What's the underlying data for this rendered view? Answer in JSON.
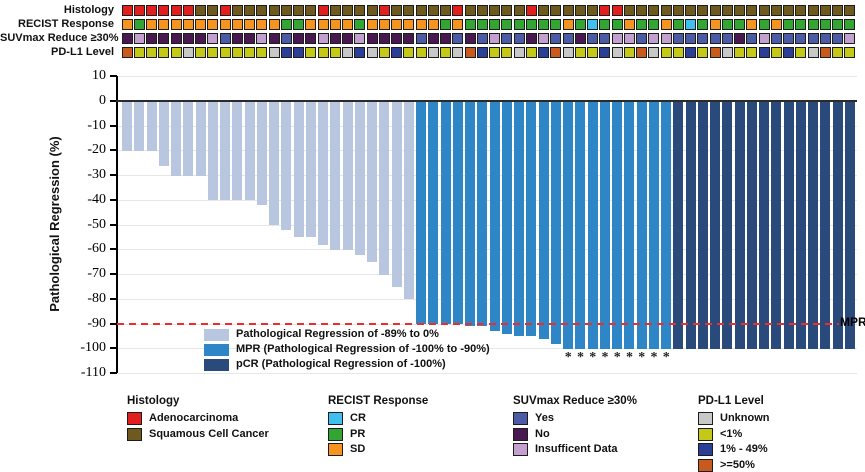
{
  "tracks": {
    "labels": [
      "Histology",
      "RECIST Response",
      "SUVmax Reduce ≥30%",
      "PD-L1 Level"
    ],
    "histology": [
      "A",
      "A",
      "A",
      "A",
      "A",
      "A",
      "S",
      "S",
      "A",
      "S",
      "S",
      "S",
      "S",
      "S",
      "S",
      "S",
      "A",
      "S",
      "S",
      "S",
      "S",
      "A",
      "S",
      "S",
      "S",
      "S",
      "S",
      "A",
      "S",
      "S",
      "S",
      "S",
      "S",
      "A",
      "S",
      "S",
      "S",
      "S",
      "S",
      "A",
      "A",
      "S",
      "S",
      "S",
      "S",
      "S",
      "S",
      "S",
      "S",
      "S",
      "S",
      "S",
      "S",
      "S",
      "S",
      "S",
      "S",
      "S",
      "S",
      "S"
    ],
    "recist": [
      "SD",
      "PR",
      "SD",
      "SD",
      "SD",
      "SD",
      "SD",
      "SD",
      "SD",
      "SD",
      "SD",
      "SD",
      "SD",
      "PR",
      "PR",
      "SD",
      "SD",
      "SD",
      "SD",
      "PR",
      "SD",
      "SD",
      "SD",
      "SD",
      "SD",
      "SD",
      "PR",
      "SD",
      "PR",
      "PR",
      "PR",
      "PR",
      "PR",
      "PR",
      "PR",
      "PR",
      "SD",
      "PR",
      "CR",
      "PR",
      "PR",
      "SD",
      "PR",
      "PR",
      "SD",
      "PR",
      "CR",
      "PR",
      "SD",
      "PR",
      "PR",
      "SD",
      "PR",
      "SD",
      "PR",
      "PR",
      "PR",
      "PR",
      "PR",
      "PR"
    ],
    "suvmax": [
      "N",
      "I",
      "N",
      "N",
      "N",
      "N",
      "N",
      "I",
      "Y",
      "N",
      "N",
      "I",
      "N",
      "Y",
      "N",
      "N",
      "I",
      "N",
      "N",
      "I",
      "N",
      "N",
      "N",
      "N",
      "Y",
      "N",
      "N",
      "Y",
      "N",
      "Y",
      "I",
      "Y",
      "Y",
      "N",
      "I",
      "Y",
      "Y",
      "N",
      "Y",
      "Y",
      "I",
      "I",
      "Y",
      "I",
      "I",
      "Y",
      "Y",
      "Y",
      "Y",
      "Y",
      "N",
      "Y",
      "I",
      "Y",
      "Y",
      "Y",
      "Y",
      "Y",
      "Y",
      "I"
    ],
    "pdl1": [
      "H",
      "L",
      "L",
      "L",
      "L",
      "U",
      "L",
      "L",
      "L",
      "L",
      "L",
      "L",
      "U",
      "M",
      "M",
      "L",
      "L",
      "L",
      "U",
      "M",
      "U",
      "L",
      "M",
      "L",
      "L",
      "U",
      "L",
      "U",
      "H",
      "M",
      "L",
      "L",
      "U",
      "L",
      "M",
      "H",
      "U",
      "L",
      "L",
      "M",
      "U",
      "L",
      "H",
      "U",
      "L",
      "L",
      "M",
      "L",
      "H",
      "U",
      "L",
      "L",
      "M",
      "L",
      "M",
      "L",
      "U",
      "H",
      "L",
      "L"
    ]
  },
  "track_colors": {
    "histology": {
      "A": "#e11f1f",
      "S": "#6e591f"
    },
    "recist": {
      "CR": "#3fc0ee",
      "PR": "#33a532",
      "SD": "#f5941f"
    },
    "suvmax": {
      "Y": "#4c5ba6",
      "N": "#4a1850",
      "I": "#c3a0d0"
    },
    "pdl1": {
      "U": "#c8c8c8",
      "L": "#c4c817",
      "M": "#2c3f96",
      "H": "#c75a1c"
    }
  },
  "chart_data": {
    "type": "bar",
    "title": "",
    "ylabel": "Pathological Regression (%)",
    "ylim": [
      -110,
      10
    ],
    "yticks": [
      10,
      0,
      -10,
      -20,
      -30,
      -40,
      -50,
      -60,
      -70,
      -80,
      -90,
      -100,
      -110
    ],
    "n_patients": 60,
    "values": [
      -20,
      -20,
      -20,
      -26,
      -30,
      -30,
      -30,
      -40,
      -40,
      -40,
      -40,
      -42,
      -50,
      -52,
      -55,
      -55,
      -58,
      -60,
      -60,
      -62,
      -65,
      -70,
      -75,
      -80,
      -90,
      -90,
      -90,
      -90,
      -91,
      -91,
      -93,
      -94,
      -95,
      -95,
      -96,
      -98,
      -100,
      -100,
      -100,
      -100,
      -100,
      -100,
      -100,
      -100,
      -100,
      -100,
      -100,
      -100,
      -100,
      -100,
      -100,
      -100,
      -100,
      -100,
      -100,
      -100,
      -100,
      -100,
      -100,
      -100
    ],
    "groups": [
      "light",
      "light",
      "light",
      "light",
      "light",
      "light",
      "light",
      "light",
      "light",
      "light",
      "light",
      "light",
      "light",
      "light",
      "light",
      "light",
      "light",
      "light",
      "light",
      "light",
      "light",
      "light",
      "light",
      "light",
      "mpr",
      "mpr",
      "mpr",
      "mpr",
      "mpr",
      "mpr",
      "mpr",
      "mpr",
      "mpr",
      "mpr",
      "mpr",
      "mpr",
      "mpr",
      "mpr",
      "mpr",
      "mpr",
      "mpr",
      "mpr",
      "mpr",
      "mpr",
      "mpr",
      "pcr",
      "pcr",
      "pcr",
      "pcr",
      "pcr",
      "pcr",
      "pcr",
      "pcr",
      "pcr",
      "pcr",
      "pcr",
      "pcr",
      "pcr",
      "pcr",
      "pcr"
    ],
    "group_colors": {
      "light": "#b9c6e0",
      "mpr": "#2f86c6",
      "pcr": "#2a4a7c"
    },
    "reference_line": {
      "value": -90,
      "label": "MPR",
      "color": "#ee2c2c",
      "style": "dashed"
    },
    "asterisk_bars": [
      37,
      38,
      39,
      40,
      41,
      42,
      43,
      44,
      45
    ],
    "asterisk_char": "*",
    "grid": true,
    "legend_position": "inside-bottom-left"
  },
  "inner_legend": [
    {
      "key": "light",
      "label": "Pathological Regression of -89% to 0%"
    },
    {
      "key": "mpr",
      "label": "MPR (Pathological Regression of -100% to -90%)"
    },
    {
      "key": "pcr",
      "label": "pCR (Pathological Regression of -100%)"
    }
  ],
  "bottom_legend": [
    {
      "title": "Histology",
      "items": [
        {
          "color": "#e11f1f",
          "label": "Adenocarcinoma"
        },
        {
          "color": "#6e591f",
          "label": "Squamous Cell Cancer"
        }
      ]
    },
    {
      "title": "RECIST Response",
      "items": [
        {
          "color": "#3fc0ee",
          "label": "CR"
        },
        {
          "color": "#33a532",
          "label": "PR"
        },
        {
          "color": "#f5941f",
          "label": "SD"
        }
      ]
    },
    {
      "title": "SUVmax Reduce ≥30%",
      "items": [
        {
          "color": "#4c5ba6",
          "label": "Yes"
        },
        {
          "color": "#4a1850",
          "label": "No"
        },
        {
          "color": "#c3a0d0",
          "label": "Insufficent Data"
        }
      ]
    },
    {
      "title": "PD-L1 Level",
      "items": [
        {
          "color": "#c8c8c8",
          "label": "Unknown"
        },
        {
          "color": "#c4c817",
          "label": "<1%"
        },
        {
          "color": "#2c3f96",
          "label": "1% - 49%"
        },
        {
          "color": "#c75a1c",
          "label": ">=50%"
        }
      ]
    }
  ]
}
